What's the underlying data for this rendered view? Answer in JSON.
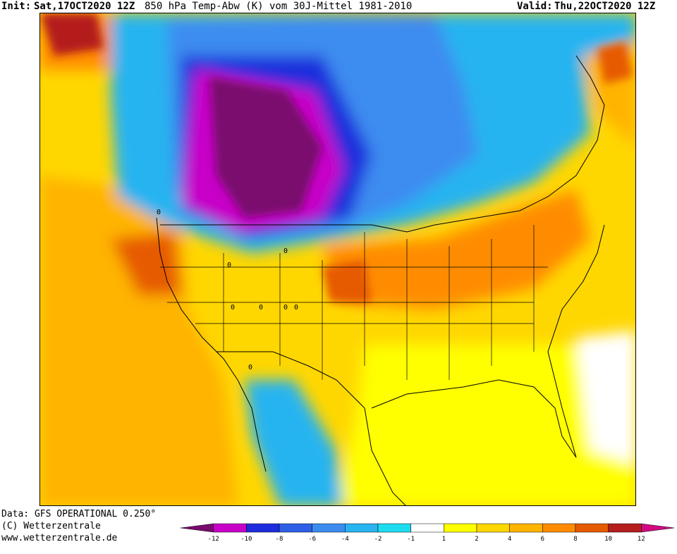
{
  "header": {
    "init_label": "Init:",
    "init_value": "Sat,17OCT2020 12Z",
    "title": "850 hPa Temp-Abw (K) vom 30J-Mittel 1981-2010",
    "valid_label": "Valid:",
    "valid_value": "Thu,22OCT2020 12Z"
  },
  "footer": {
    "data_line": "Data: GFS OPERATIONAL 0.250°",
    "copyright": "(C) Wetterzentrale",
    "website": "www.wetterzentrale.de"
  },
  "legend": {
    "colors": [
      "#7a0a6e",
      "#c800c8",
      "#1e2ddc",
      "#2f5fe6",
      "#3c8cf0",
      "#28b4f0",
      "#1edcf0",
      "#ffffff",
      "#ffff00",
      "#ffd700",
      "#ffb400",
      "#ff8c00",
      "#e65a00",
      "#b41e1e",
      "#d20a82"
    ],
    "ticks": [
      "-12",
      "-10",
      "-8",
      "-6",
      "-4",
      "-2",
      "-1",
      "1",
      "2",
      "4",
      "6",
      "8",
      "10",
      "12"
    ]
  },
  "map_labels": [
    "0",
    "0",
    "0",
    "0",
    "0",
    "0",
    "0",
    "0"
  ]
}
